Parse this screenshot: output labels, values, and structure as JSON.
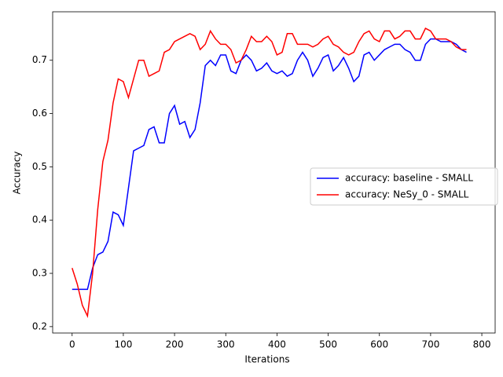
{
  "chart_data": {
    "type": "line",
    "x_label": "Iterations",
    "y_label": "Accuracy",
    "x": [
      0,
      10,
      20,
      30,
      40,
      50,
      60,
      70,
      80,
      90,
      100,
      110,
      120,
      130,
      140,
      150,
      160,
      170,
      180,
      190,
      200,
      210,
      220,
      230,
      240,
      250,
      260,
      270,
      280,
      290,
      300,
      310,
      320,
      330,
      340,
      350,
      360,
      370,
      380,
      390,
      400,
      410,
      420,
      430,
      440,
      450,
      460,
      470,
      480,
      490,
      500,
      510,
      520,
      530,
      540,
      550,
      560,
      570,
      580,
      590,
      600,
      610,
      620,
      630,
      640,
      650,
      660,
      670,
      680,
      690,
      700,
      710,
      720,
      730,
      740,
      750,
      760,
      770
    ],
    "series": [
      {
        "name": "accuracy: baseline - SMALL",
        "color": "#0000ff",
        "values": [
          0.27,
          0.27,
          0.27,
          0.27,
          0.31,
          0.335,
          0.34,
          0.36,
          0.415,
          0.41,
          0.39,
          0.46,
          0.53,
          0.535,
          0.54,
          0.57,
          0.575,
          0.545,
          0.545,
          0.6,
          0.615,
          0.58,
          0.585,
          0.555,
          0.57,
          0.62,
          0.69,
          0.7,
          0.69,
          0.71,
          0.71,
          0.68,
          0.675,
          0.7,
          0.71,
          0.7,
          0.68,
          0.685,
          0.695,
          0.68,
          0.675,
          0.68,
          0.67,
          0.675,
          0.7,
          0.715,
          0.7,
          0.67,
          0.685,
          0.705,
          0.71,
          0.68,
          0.69,
          0.705,
          0.685,
          0.66,
          0.67,
          0.71,
          0.715,
          0.7,
          0.71,
          0.72,
          0.725,
          0.73,
          0.73,
          0.72,
          0.715,
          0.7,
          0.7,
          0.73,
          0.74,
          0.74,
          0.735,
          0.735,
          0.735,
          0.73,
          0.72,
          0.715
        ]
      },
      {
        "name": "accuracy: NeSy_0 - SMALL",
        "color": "#ff0000",
        "values": [
          0.31,
          0.28,
          0.24,
          0.22,
          0.3,
          0.42,
          0.51,
          0.55,
          0.62,
          0.665,
          0.66,
          0.63,
          0.665,
          0.7,
          0.7,
          0.67,
          0.675,
          0.68,
          0.715,
          0.72,
          0.735,
          0.74,
          0.745,
          0.75,
          0.745,
          0.72,
          0.73,
          0.755,
          0.74,
          0.73,
          0.73,
          0.72,
          0.695,
          0.7,
          0.72,
          0.745,
          0.735,
          0.735,
          0.745,
          0.735,
          0.71,
          0.715,
          0.75,
          0.75,
          0.73,
          0.73,
          0.73,
          0.725,
          0.73,
          0.74,
          0.745,
          0.73,
          0.725,
          0.715,
          0.71,
          0.715,
          0.735,
          0.75,
          0.755,
          0.74,
          0.735,
          0.755,
          0.755,
          0.74,
          0.745,
          0.755,
          0.755,
          0.74,
          0.74,
          0.76,
          0.755,
          0.74,
          0.74,
          0.74,
          0.735,
          0.725,
          0.72,
          0.72
        ]
      }
    ],
    "xlim": [
      -38,
      826
    ],
    "ylim": [
      0.188,
      0.791
    ],
    "xticks": [
      0,
      100,
      200,
      300,
      400,
      500,
      600,
      700,
      800
    ],
    "yticks": [
      0.2,
      0.3,
      0.4,
      0.5,
      0.6,
      0.7
    ],
    "legend": "center right"
  }
}
